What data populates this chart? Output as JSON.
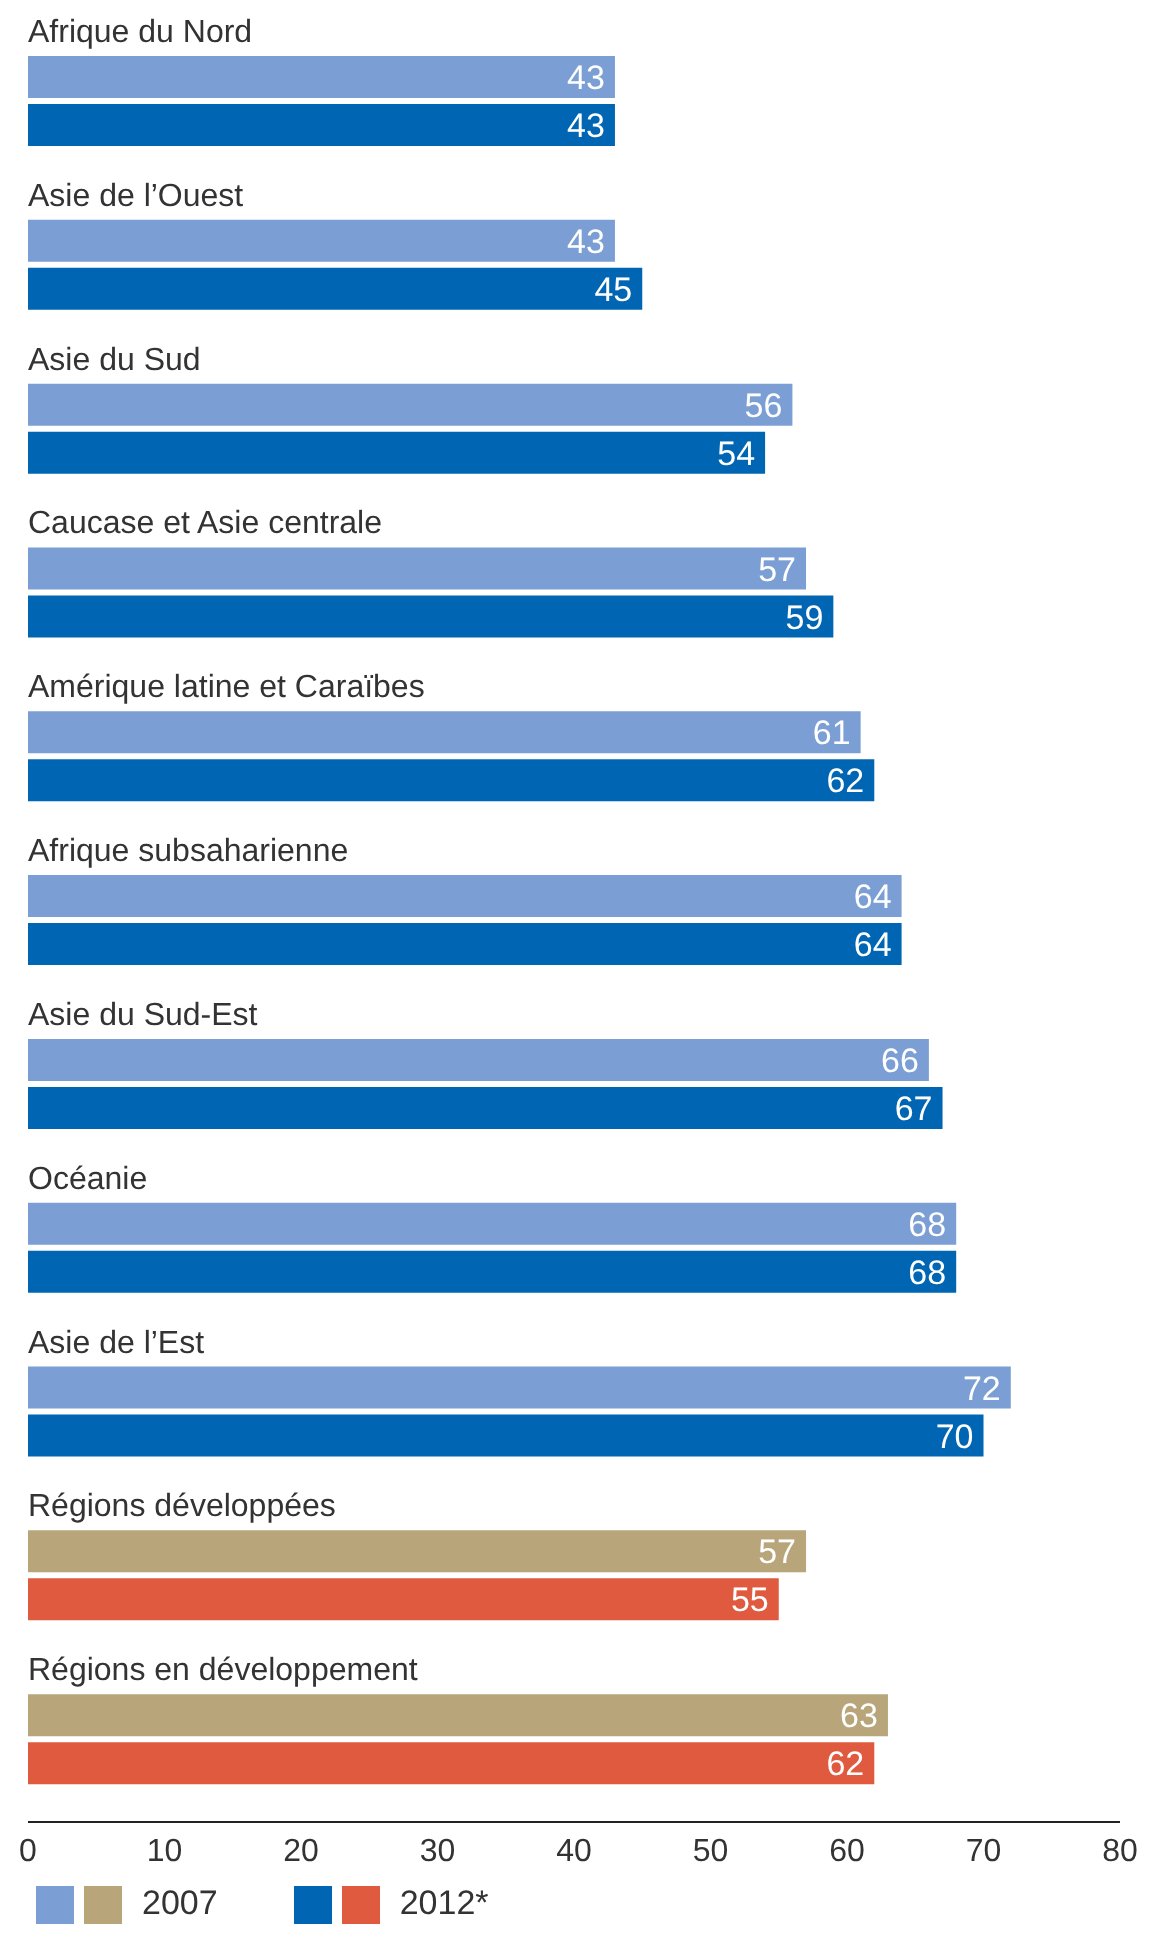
{
  "chart_data": {
    "type": "bar",
    "orientation": "horizontal",
    "categories": [
      "Afrique du Nord",
      "Asie de l’Ouest",
      "Asie du Sud",
      "Caucase et Asie centrale",
      "Amérique latine et Caraïbes",
      "Afrique subsaharienne",
      "Asie du Sud-Est",
      "Océanie",
      "Asie de l’Est",
      "Régions développées",
      "Régions en développement"
    ],
    "series": [
      {
        "name": "2007",
        "values": [
          43,
          43,
          56,
          57,
          61,
          64,
          66,
          68,
          72,
          57,
          63
        ],
        "colors": [
          "#7b9fd4",
          "#7b9fd4",
          "#7b9fd4",
          "#7b9fd4",
          "#7b9fd4",
          "#7b9fd4",
          "#7b9fd4",
          "#7b9fd4",
          "#7b9fd4",
          "#b9a57a",
          "#b9a57a"
        ]
      },
      {
        "name": "2012*",
        "values": [
          43,
          45,
          54,
          59,
          62,
          64,
          67,
          68,
          70,
          55,
          62
        ],
        "colors": [
          "#0066b3",
          "#0066b3",
          "#0066b3",
          "#0066b3",
          "#0066b3",
          "#0066b3",
          "#0066b3",
          "#0066b3",
          "#0066b3",
          "#e05a3f",
          "#e05a3f"
        ]
      }
    ],
    "xlim": [
      0,
      80
    ],
    "xticks": [
      0,
      10,
      20,
      30,
      40,
      50,
      60,
      70,
      80
    ],
    "grid": false,
    "legend": "bottom",
    "data_labels": true
  }
}
